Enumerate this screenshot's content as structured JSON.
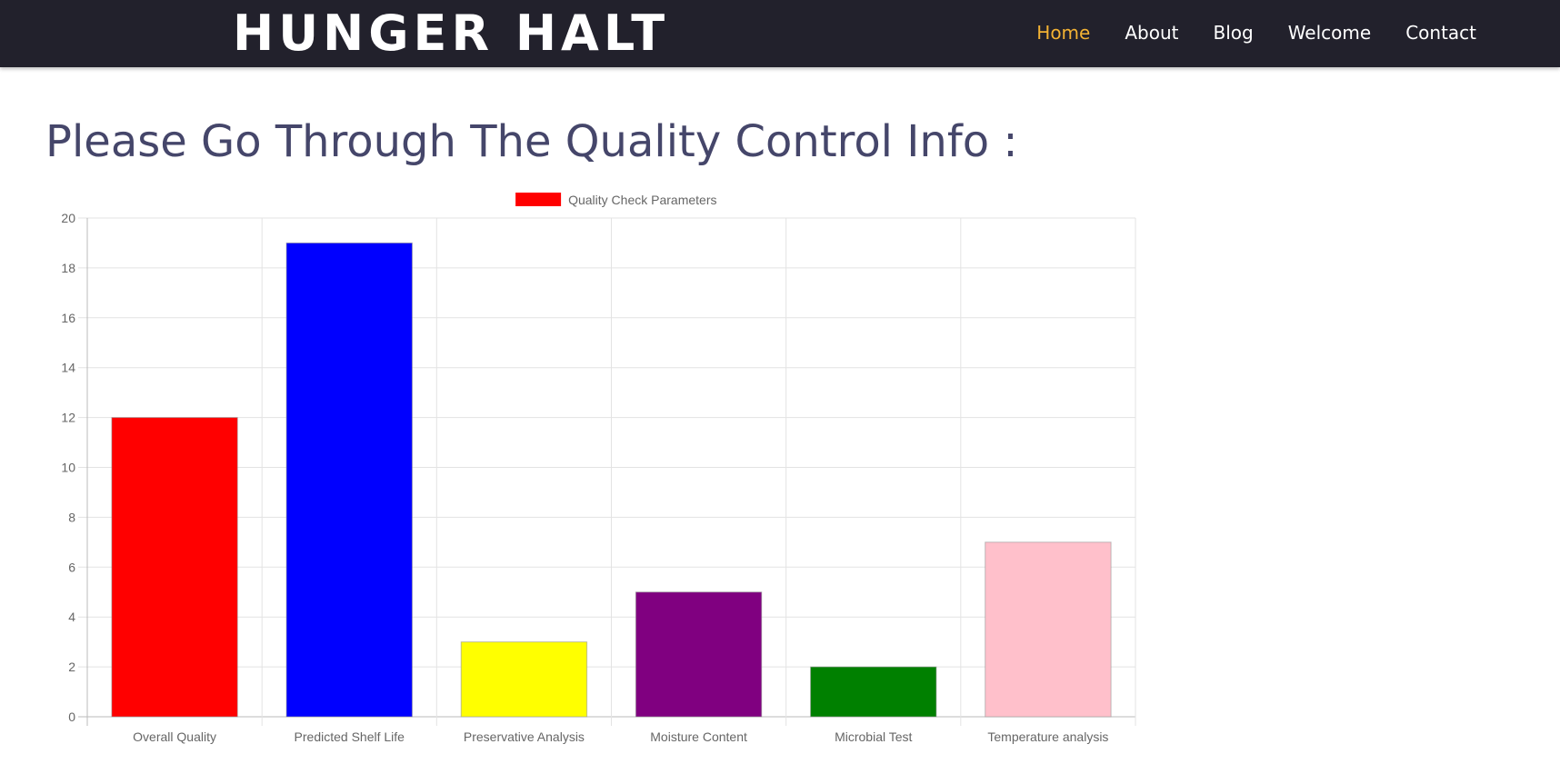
{
  "header": {
    "brand": "HUNGER HALT",
    "nav": [
      {
        "label": "Home",
        "active": true
      },
      {
        "label": "About",
        "active": false
      },
      {
        "label": "Blog",
        "active": false
      },
      {
        "label": "Welcome",
        "active": false
      },
      {
        "label": "Contact",
        "active": false
      }
    ],
    "active_color": "#f3b233",
    "background_color": "#22212c"
  },
  "main": {
    "title": "Please Go Through The Quality Control Info :"
  },
  "chart_data": {
    "type": "bar",
    "categories": [
      "Overall Quality",
      "Predicted Shelf Life",
      "Preservative Analysis",
      "Moisture Content",
      "Microbial Test",
      "Temperature analysis"
    ],
    "series": [
      {
        "name": "Quality Check Parameters",
        "values": [
          12,
          19,
          3,
          5,
          2,
          7
        ],
        "colors": [
          "#ff0000",
          "#0000ff",
          "#ffff00",
          "#800080",
          "#008000",
          "#ffc0cb"
        ],
        "legend_color": "#ff0000"
      }
    ],
    "ylim": [
      0,
      20
    ],
    "y_ticks": [
      0,
      2,
      4,
      6,
      8,
      10,
      12,
      14,
      16,
      18,
      20
    ],
    "grid": true,
    "legend_position": "top"
  }
}
